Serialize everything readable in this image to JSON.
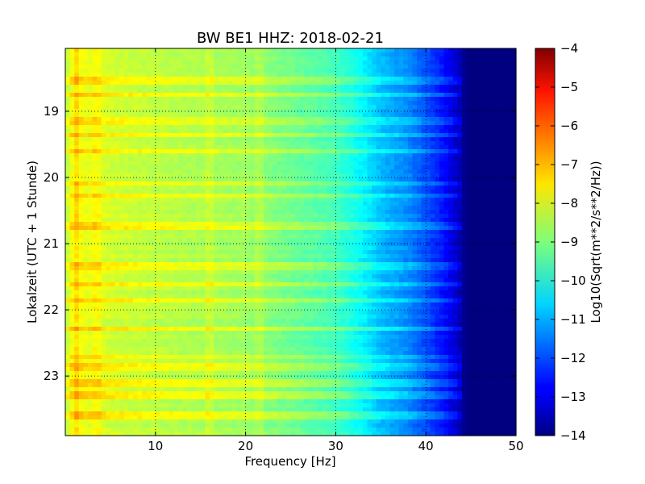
{
  "chart_data": {
    "type": "heatmap",
    "title": "BW BE1 HHZ: 2018-02-21",
    "xlabel": "Frequency [Hz]",
    "ylabel": "Lokalzeit (UTC + 1 Stunde)",
    "colorbar_label": "Log10(Sqrt(m**2/s**2/Hz))",
    "colormap": "jet",
    "xlim": [
      0,
      50
    ],
    "ylim": [
      18.05,
      23.9
    ],
    "y_inverted": true,
    "clim": [
      -14,
      -4
    ],
    "x_ticks": [
      10,
      20,
      30,
      40,
      50
    ],
    "y_ticks": [
      19,
      20,
      21,
      22,
      23
    ],
    "cbar_ticks": [
      -4,
      -5,
      -6,
      -7,
      -8,
      -9,
      -10,
      -11,
      -12,
      -13,
      -14
    ],
    "grid": true,
    "spectrum_profile": {
      "frequency_hz": [
        0.3,
        1,
        2,
        5,
        10,
        20,
        30,
        33,
        35,
        38,
        40,
        42,
        43.5,
        44.5,
        46,
        50
      ],
      "log10_amplitude": [
        -8.3,
        -7.6,
        -7.9,
        -8.2,
        -8.4,
        -8.7,
        -9.6,
        -10.3,
        -10.9,
        -11.4,
        -12.0,
        -12.6,
        -13.3,
        -14.0,
        -14.0,
        -14.0
      ]
    },
    "bright_bands_hour": [
      18.55,
      18.75,
      19.15,
      19.35,
      19.6,
      20.1,
      20.27,
      20.72,
      21.33,
      21.6,
      21.85,
      22.3,
      22.7,
      22.87,
      23.1,
      23.28,
      23.6
    ],
    "bright_vertical_lines_hz": [
      1.2,
      3.5,
      16.0,
      21.5
    ]
  }
}
